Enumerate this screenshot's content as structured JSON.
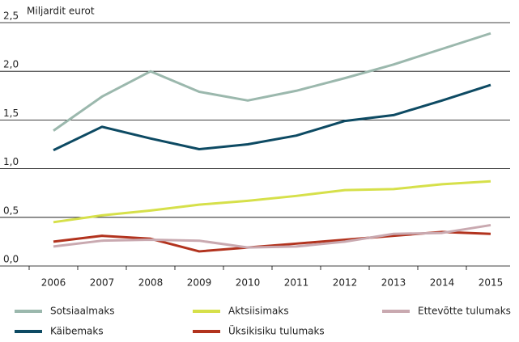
{
  "chart_data": {
    "type": "line",
    "y_label": "Miljardit eurot",
    "categories": [
      "2006",
      "2007",
      "2008",
      "2009",
      "2010",
      "2011",
      "2012",
      "2013",
      "2014",
      "2015"
    ],
    "series": [
      {
        "name": "Sotsiaalmaks",
        "color": "#9bb8ad",
        "values": [
          1.39,
          1.74,
          2.0,
          1.79,
          1.7,
          1.8,
          1.93,
          2.07,
          2.23,
          2.39
        ]
      },
      {
        "name": "Käibemaks",
        "color": "#0d4a63",
        "values": [
          1.19,
          1.43,
          1.31,
          1.2,
          1.25,
          1.34,
          1.49,
          1.55,
          1.7,
          1.86
        ]
      },
      {
        "name": "Aktsiisimaks",
        "color": "#d6e04a",
        "values": [
          0.45,
          0.52,
          0.57,
          0.63,
          0.67,
          0.72,
          0.78,
          0.79,
          0.84,
          0.87
        ]
      },
      {
        "name": "Üksikisiku tulumaks",
        "color": "#b2331e",
        "values": [
          0.25,
          0.31,
          0.28,
          0.15,
          0.19,
          0.23,
          0.27,
          0.31,
          0.35,
          0.33
        ]
      },
      {
        "name": "Ettevõtte tulumaks",
        "color": "#c9a9b0",
        "values": [
          0.2,
          0.26,
          0.27,
          0.26,
          0.19,
          0.2,
          0.25,
          0.33,
          0.34,
          0.42
        ]
      }
    ],
    "ylim": [
      0,
      2.5
    ],
    "yticks": [
      {
        "value": 0,
        "label": "0,0"
      },
      {
        "value": 0.5,
        "label": "0,5"
      },
      {
        "value": 1,
        "label": "1,0"
      },
      {
        "value": 1.5,
        "label": "1,5"
      },
      {
        "value": 2,
        "label": "2,0"
      },
      {
        "value": 2.5,
        "label": "2,5"
      }
    ],
    "grid": true,
    "legend": "bottom"
  }
}
